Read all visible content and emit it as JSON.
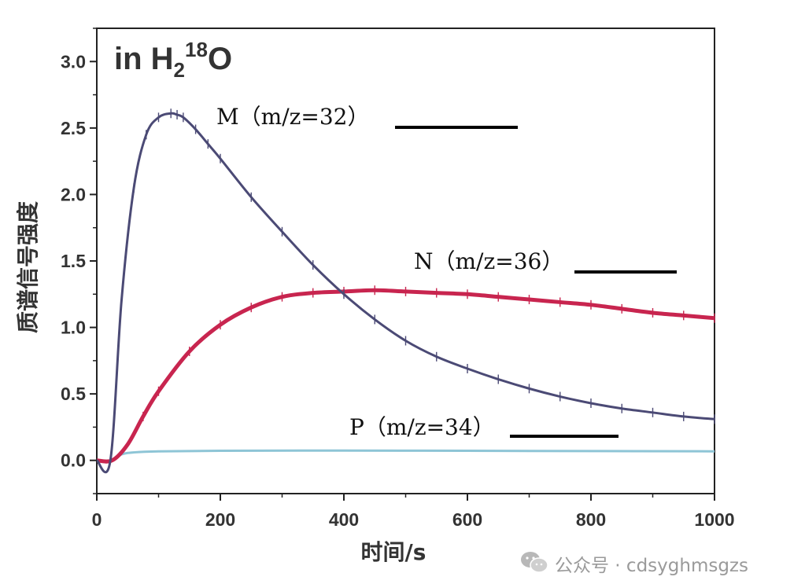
{
  "chart_data": {
    "type": "line",
    "title": "in H",
    "title_sub": "2",
    "title_sup": "18",
    "title_tail": "O",
    "xlabel": "时间/s",
    "ylabel": "质谱信号强度",
    "xlim": [
      0,
      1000
    ],
    "ylim": [
      -0.25,
      3.25
    ],
    "x_ticks": [
      0,
      200,
      400,
      600,
      800,
      1000
    ],
    "x_tick_labels": [
      "0",
      "200",
      "400",
      "600",
      "800",
      "1000"
    ],
    "y_ticks": [
      0.0,
      0.5,
      1.0,
      1.5,
      2.0,
      2.5,
      3.0
    ],
    "y_tick_labels": [
      "0.0",
      "0.5",
      "1.0",
      "1.5",
      "2.0",
      "2.5",
      "3.0"
    ],
    "grid": false,
    "series": [
      {
        "name": "M（m/z=32）",
        "color": "#4b4a75",
        "x": [
          0,
          22,
          40,
          60,
          80,
          100,
          120,
          130,
          140,
          160,
          180,
          200,
          250,
          300,
          350,
          400,
          450,
          500,
          550,
          600,
          650,
          700,
          750,
          800,
          850,
          900,
          950,
          1000
        ],
        "values": [
          0,
          0,
          1.2,
          2.05,
          2.45,
          2.58,
          2.61,
          2.6,
          2.58,
          2.49,
          2.38,
          2.27,
          1.98,
          1.72,
          1.47,
          1.25,
          1.06,
          0.9,
          0.78,
          0.69,
          0.61,
          0.54,
          0.48,
          0.43,
          0.39,
          0.36,
          0.33,
          0.31
        ]
      },
      {
        "name": "N（m/z=36）",
        "color": "#c8254f",
        "x": [
          0,
          25,
          50,
          75,
          100,
          150,
          200,
          250,
          300,
          350,
          400,
          450,
          500,
          550,
          600,
          650,
          700,
          750,
          800,
          850,
          900,
          950,
          1000
        ],
        "values": [
          0,
          0,
          0.12,
          0.33,
          0.52,
          0.82,
          1.02,
          1.15,
          1.23,
          1.26,
          1.27,
          1.28,
          1.27,
          1.26,
          1.25,
          1.23,
          1.21,
          1.19,
          1.17,
          1.14,
          1.11,
          1.09,
          1.07
        ]
      },
      {
        "name": "P（m/z=34）",
        "color": "#8ec5d6",
        "x": [
          0,
          22,
          40,
          60,
          100,
          200,
          400,
          600,
          800,
          1000
        ],
        "values": [
          0,
          0,
          0.045,
          0.06,
          0.068,
          0.072,
          0.074,
          0.072,
          0.07,
          0.068
        ]
      }
    ]
  },
  "watermark": {
    "text": "公众号 · cdsyghmsgzs",
    "icon": "wechat-icon"
  }
}
